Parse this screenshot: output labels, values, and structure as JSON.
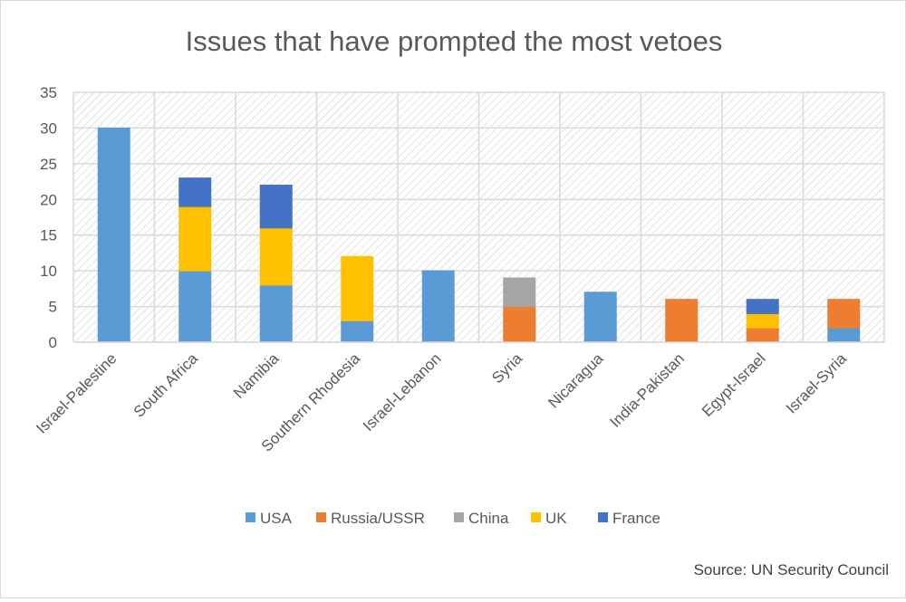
{
  "chart_data": {
    "type": "bar",
    "stacked": true,
    "title": "Issues that have prompted the most vetoes",
    "source": "Source: UN Security Council",
    "categories": [
      "Israel-Palestine",
      "South Africa",
      "Namibia",
      "Southern Rhodesia",
      "Israel-Lebanon",
      "Syria",
      "Nicaragua",
      "India-Pakistan",
      "Egypt-Israel",
      "Israel-Syria"
    ],
    "series": [
      {
        "name": "USA",
        "color": "#5b9bd5",
        "values": [
          30,
          10,
          8,
          3,
          10,
          0,
          7,
          0,
          0,
          2
        ]
      },
      {
        "name": "Russia/USSR",
        "color": "#ed7d31",
        "values": [
          0,
          0,
          0,
          0,
          0,
          5,
          0,
          6,
          2,
          4
        ]
      },
      {
        "name": "China",
        "color": "#a5a5a5",
        "values": [
          0,
          0,
          0,
          0,
          0,
          4,
          0,
          0,
          0,
          0
        ]
      },
      {
        "name": "UK",
        "color": "#ffc000",
        "values": [
          0,
          9,
          8,
          9,
          0,
          0,
          0,
          0,
          2,
          0
        ]
      },
      {
        "name": "France",
        "color": "#4472c4",
        "values": [
          0,
          4,
          6,
          0,
          0,
          0,
          0,
          0,
          2,
          0
        ]
      }
    ],
    "ylim": [
      0,
      35
    ],
    "yticks": [
      0,
      5,
      10,
      15,
      20,
      25,
      30,
      35
    ],
    "grid": true,
    "legend": "bottom"
  }
}
